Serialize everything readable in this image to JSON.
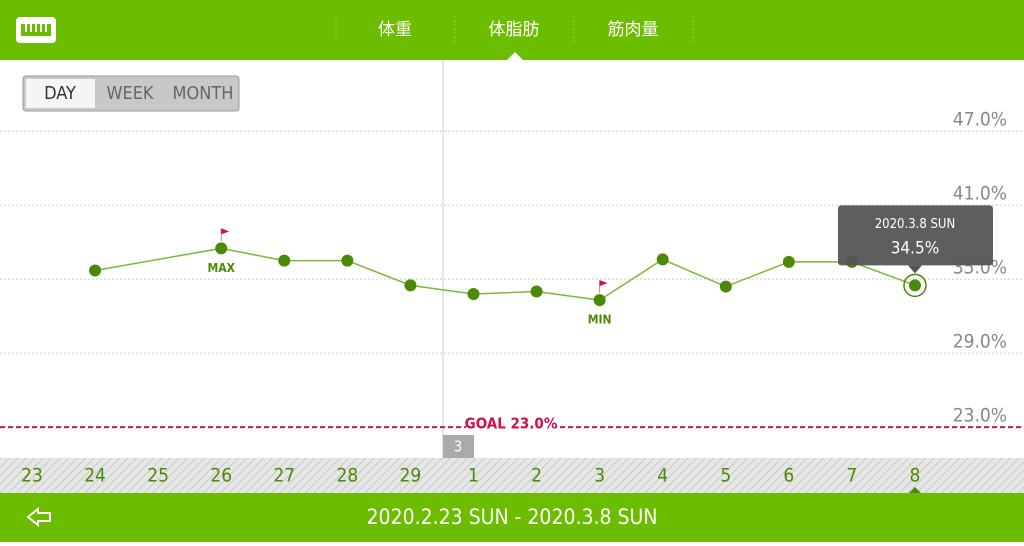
{
  "header": {
    "tabs": [
      "体重",
      "体脂肪",
      "筋肉量"
    ]
  },
  "range_buttons": [
    "DAY",
    "WEEK",
    "MONTH"
  ],
  "footer": {
    "period": "2020.2.23 SUN - 2020.3.8 SUN"
  },
  "chart_data": {
    "type": "line",
    "categories": [
      "23",
      "24",
      "25",
      "26",
      "27",
      "28",
      "29",
      "1",
      "2",
      "3",
      "4",
      "5",
      "6",
      "7",
      "8"
    ],
    "series": [
      {
        "name": "体脂肪",
        "color": "#4b8a06",
        "values": [
          null,
          35.7,
          null,
          37.5,
          36.5,
          36.5,
          34.5,
          33.8,
          34.0,
          33.3,
          36.6,
          34.4,
          36.4,
          36.4,
          34.5
        ]
      }
    ],
    "ylim": [
      20.5,
      52.77
    ],
    "yticks": [
      {
        "value": 23,
        "label": "23.0%"
      },
      {
        "value": 29,
        "label": "29.0%"
      },
      {
        "value": 35,
        "label": "35.0%"
      },
      {
        "value": 41,
        "label": "41.0%"
      },
      {
        "value": 47,
        "label": "47.0%"
      }
    ],
    "grid": true,
    "goal": {
      "value": 23,
      "label": "GOAL 23.0%"
    },
    "max_label": "MAX",
    "min_label": "MIN",
    "month_marker": "3",
    "tooltip": {
      "date": "2020.3.8 SUN",
      "value_label": "34.5%"
    }
  }
}
